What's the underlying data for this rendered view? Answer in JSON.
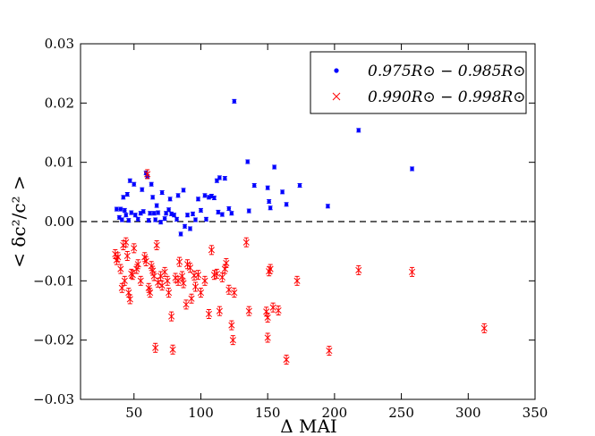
{
  "chart_data": {
    "type": "scatter",
    "xlabel": "Δ MAI",
    "ylabel": "< δc²/c² >",
    "xlim": [
      10,
      350
    ],
    "ylim": [
      -0.03,
      0.03
    ],
    "xticks": [
      50,
      100,
      150,
      200,
      250,
      300,
      350
    ],
    "xtick_labels": [
      "50",
      "100",
      "150",
      "200",
      "250",
      "300",
      "350"
    ],
    "yticks": [
      -0.03,
      -0.02,
      -0.01,
      0.0,
      0.01,
      0.02,
      0.03
    ],
    "ytick_labels": [
      "−0.03",
      "−0.02",
      "−0.01",
      "0.00",
      "0.01",
      "0.02",
      "0.03"
    ],
    "reference_line": {
      "y": 0,
      "style": "dashed",
      "color": "#000000"
    },
    "legend_position": "top-right",
    "series": [
      {
        "name": "0.975R⊙ − 0.985R⊙",
        "marker": "dot",
        "color": "#0000ff",
        "points": [
          [
            37,
            0.0021
          ],
          [
            39,
            0.0007
          ],
          [
            40,
            0.0021
          ],
          [
            41,
            0.0003
          ],
          [
            42,
            0.0041
          ],
          [
            43,
            0.0019
          ],
          [
            44,
            0.0011
          ],
          [
            45,
            0.0046
          ],
          [
            46,
            0.0002
          ],
          [
            47,
            0.0069
          ],
          [
            48,
            0.0015
          ],
          [
            50,
            0.0063
          ],
          [
            51,
            0.0011
          ],
          [
            53,
            0.0004
          ],
          [
            55,
            0.0014
          ],
          [
            56,
            0.0054
          ],
          [
            57,
            0.0017
          ],
          [
            59,
            0.0082
          ],
          [
            60,
            0.0076
          ],
          [
            61,
            0.0002
          ],
          [
            62,
            0.0014
          ],
          [
            63,
            0.0063
          ],
          [
            64,
            0.0041
          ],
          [
            65,
            0.0014
          ],
          [
            66,
            0.0003
          ],
          [
            67,
            0.0027
          ],
          [
            68,
            0.0015
          ],
          [
            70,
            -0.0001
          ],
          [
            71,
            0.0049
          ],
          [
            73,
            0.0005
          ],
          [
            74,
            0.0014
          ],
          [
            76,
            0.002
          ],
          [
            77,
            0.0038
          ],
          [
            78,
            0.0013
          ],
          [
            80,
            0.0011
          ],
          [
            82,
            0.0004
          ],
          [
            83,
            0.0044
          ],
          [
            85,
            -0.0021
          ],
          [
            87,
            0.0053
          ],
          [
            88,
            -0.0008
          ],
          [
            90,
            0.0011
          ],
          [
            92,
            -0.0012
          ],
          [
            94,
            0.0013
          ],
          [
            96,
            0.0003
          ],
          [
            98,
            0.0038
          ],
          [
            100,
            0.0019
          ],
          [
            103,
            0.0044
          ],
          [
            104,
            0.0004
          ],
          [
            106,
            0.0041
          ],
          [
            108,
            0.0043
          ],
          [
            110,
            0.004
          ],
          [
            112,
            0.0069
          ],
          [
            113,
            0.0016
          ],
          [
            114,
            0.0074
          ],
          [
            116,
            0.0012
          ],
          [
            118,
            0.0073
          ],
          [
            121,
            0.0022
          ],
          [
            123,
            0.0014
          ],
          [
            125,
            0.0203
          ],
          [
            135,
            0.0101
          ],
          [
            136,
            0.0018
          ],
          [
            140,
            0.0061
          ],
          [
            150,
            0.0057
          ],
          [
            151,
            0.0034
          ],
          [
            152,
            0.0023
          ],
          [
            155,
            0.0092
          ],
          [
            161,
            0.005
          ],
          [
            164,
            0.0029
          ],
          [
            174,
            0.0061
          ],
          [
            195,
            0.0026
          ],
          [
            218,
            0.0154
          ],
          [
            258,
            0.0089
          ]
        ]
      },
      {
        "name": "0.990R⊙ − 0.998R⊙",
        "marker": "x",
        "color": "#ff0000",
        "points": [
          [
            36,
            -0.0055
          ],
          [
            37,
            -0.0065
          ],
          [
            38,
            -0.006
          ],
          [
            40,
            -0.008
          ],
          [
            41,
            -0.0112
          ],
          [
            42,
            -0.004
          ],
          [
            43,
            -0.01
          ],
          [
            44,
            -0.0035
          ],
          [
            45,
            -0.0058
          ],
          [
            46,
            -0.012
          ],
          [
            47,
            -0.0131
          ],
          [
            48,
            -0.0088
          ],
          [
            49,
            -0.009
          ],
          [
            50,
            -0.0045
          ],
          [
            52,
            -0.008
          ],
          [
            53,
            -0.0072
          ],
          [
            55,
            -0.01
          ],
          [
            58,
            -0.006
          ],
          [
            59,
            -0.0067
          ],
          [
            60,
            0.008
          ],
          [
            61,
            -0.0112
          ],
          [
            62,
            -0.012
          ],
          [
            63,
            -0.0075
          ],
          [
            64,
            -0.0083
          ],
          [
            65,
            -0.0092
          ],
          [
            66,
            -0.0213
          ],
          [
            67,
            -0.004
          ],
          [
            68,
            -0.0103
          ],
          [
            70,
            -0.0092
          ],
          [
            71,
            -0.0108
          ],
          [
            73,
            -0.0085
          ],
          [
            75,
            -0.01
          ],
          [
            76,
            -0.012
          ],
          [
            78,
            -0.016
          ],
          [
            79,
            -0.0216
          ],
          [
            81,
            -0.0095
          ],
          [
            83,
            -0.01
          ],
          [
            84,
            -0.0068
          ],
          [
            86,
            -0.0092
          ],
          [
            87,
            -0.0104
          ],
          [
            89,
            -0.014
          ],
          [
            90,
            -0.0072
          ],
          [
            92,
            -0.0078
          ],
          [
            93,
            -0.013
          ],
          [
            95,
            -0.0091
          ],
          [
            96,
            -0.011
          ],
          [
            98,
            -0.009
          ],
          [
            100,
            -0.012
          ],
          [
            103,
            -0.01
          ],
          [
            106,
            -0.0156
          ],
          [
            108,
            -0.0048
          ],
          [
            110,
            -0.009
          ],
          [
            112,
            -0.0088
          ],
          [
            114,
            -0.0151
          ],
          [
            116,
            -0.0094
          ],
          [
            118,
            -0.008
          ],
          [
            119,
            -0.007
          ],
          [
            121,
            -0.0115
          ],
          [
            123,
            -0.0175
          ],
          [
            124,
            -0.02
          ],
          [
            125,
            -0.012
          ],
          [
            134,
            -0.0035
          ],
          [
            136,
            -0.0151
          ],
          [
            149,
            -0.0152
          ],
          [
            150,
            -0.0162
          ],
          [
            151,
            -0.0084
          ],
          [
            152,
            -0.008
          ],
          [
            154,
            -0.0145
          ],
          [
            158,
            -0.015
          ],
          [
            150,
            -0.0196
          ],
          [
            164,
            -0.0233
          ],
          [
            172,
            -0.01
          ],
          [
            196,
            -0.0218
          ],
          [
            218,
            -0.0082
          ],
          [
            258,
            -0.0085
          ],
          [
            312,
            -0.018
          ]
        ]
      }
    ]
  }
}
